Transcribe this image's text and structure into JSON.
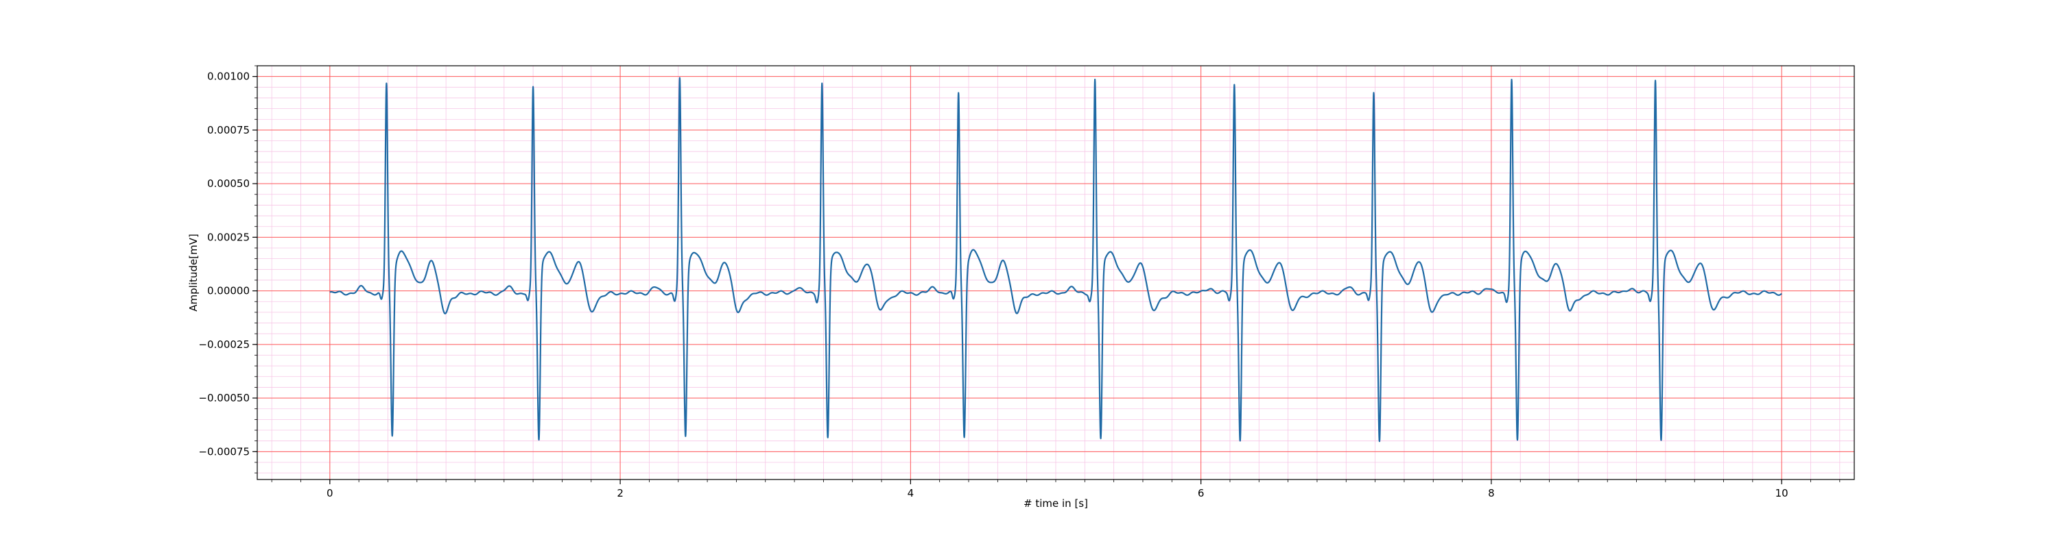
{
  "chart_data": {
    "type": "line",
    "title": "",
    "xlabel": "# time in [s]",
    "ylabel": "Amplitude[mV]",
    "xlim": [
      -0.5,
      10.5
    ],
    "ylim": [
      -0.00088,
      0.00105
    ],
    "x_ticks": [
      0,
      2,
      4,
      6,
      8,
      10
    ],
    "x_tick_labels": [
      "0",
      "2",
      "4",
      "6",
      "8",
      "10"
    ],
    "y_ticks": [
      -0.00075,
      -0.0005,
      -0.00025,
      0.0,
      0.00025,
      0.0005,
      0.00075,
      0.001
    ],
    "y_tick_labels": [
      "−0.00075",
      "−0.00050",
      "−0.00025",
      "0.00000",
      "0.00025",
      "0.00050",
      "0.00075",
      "0.00100"
    ],
    "grid": {
      "major": true,
      "minor": true,
      "major_color": "#ff5a5a",
      "minor_color": "#f7c6e6",
      "x_minor_step": 0.2,
      "y_minor_step": 5e-05
    },
    "series": [
      {
        "color": "#1f6aa5",
        "signal": "ecg",
        "x_range": [
          0,
          10
        ],
        "baseline": -1e-05,
        "beats": [
          {
            "r_time": 0.39,
            "r_peak": 0.00094,
            "s_min": -0.00077
          },
          {
            "r_time": 1.4,
            "r_peak": 0.00092,
            "s_min": -0.00079
          },
          {
            "r_time": 2.41,
            "r_peak": 0.00096,
            "s_min": -0.00077
          },
          {
            "r_time": 3.39,
            "r_peak": 0.00094,
            "s_min": -0.00078
          },
          {
            "r_time": 4.33,
            "r_peak": 0.0009,
            "s_min": -0.00077
          },
          {
            "r_time": 5.27,
            "r_peak": 0.00096,
            "s_min": -0.00079
          },
          {
            "r_time": 6.23,
            "r_peak": 0.00094,
            "s_min": -0.00079
          },
          {
            "r_time": 7.19,
            "r_peak": 0.00089,
            "s_min": -0.00079
          },
          {
            "r_time": 8.14,
            "r_peak": 0.00096,
            "s_min": -0.00079
          },
          {
            "r_time": 9.13,
            "r_peak": 0.00096,
            "s_min": -0.00079
          }
        ],
        "t_wave_peak": 0.00011
      }
    ]
  }
}
